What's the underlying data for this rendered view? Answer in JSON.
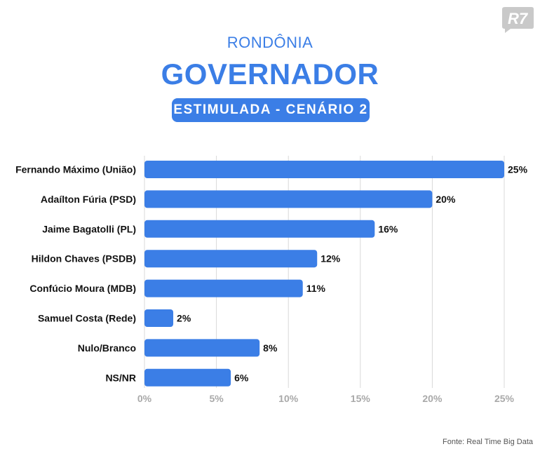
{
  "header": {
    "kicker": "RONDÔNIA",
    "title": "GOVERNADOR",
    "scenario": "ESTIMULADA - CENÁRIO 2"
  },
  "brand": {
    "logo": "R7",
    "logo_color": "#c9c9c9"
  },
  "source": "Fonte: Real Time Big Data",
  "colors": {
    "accent": "#3b7ee6",
    "bar": "#3b7ee6",
    "grid": "#d9d9d9",
    "tick": "#a9a9a9"
  },
  "chart_data": {
    "type": "bar",
    "orientation": "horizontal",
    "categories": [
      "Fernando Máximo (União)",
      "Adaílton Fúria (PSD)",
      "Jaime Bagatolli (PL)",
      "Hildon Chaves (PSDB)",
      "Confúcio Moura (MDB)",
      "Samuel Costa (Rede)",
      "Nulo/Branco",
      "NS/NR"
    ],
    "values": [
      25,
      20,
      16,
      12,
      11,
      2,
      8,
      6
    ],
    "value_labels": [
      "25%",
      "20%",
      "16%",
      "12%",
      "11%",
      "2%",
      "8%",
      "6%"
    ],
    "xlim": [
      0,
      25
    ],
    "xticks": [
      0,
      5,
      10,
      15,
      20,
      25
    ],
    "xtick_labels": [
      "0%",
      "5%",
      "10%",
      "15%",
      "20%",
      "25%"
    ],
    "grid": "vertical",
    "legend": "none"
  }
}
